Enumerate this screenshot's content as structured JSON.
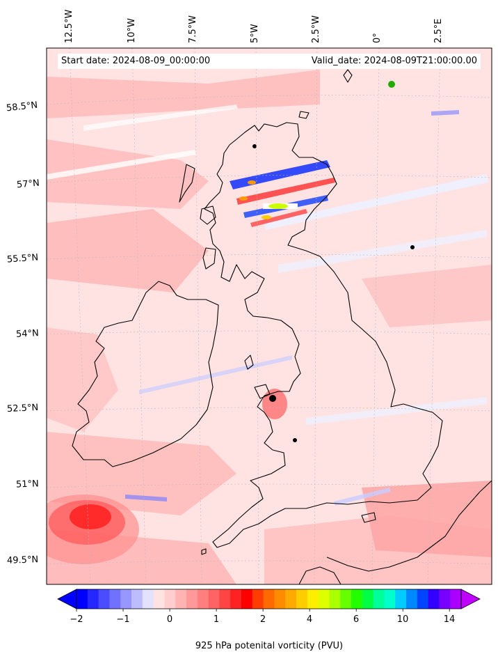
{
  "header": {
    "start_date": "Start date: 2024-08-09_00:00:00",
    "valid_date": "Valid_date: 2024-08-09T21:00:00.00"
  },
  "map": {
    "lon_labels": [
      "12.5°W",
      "10°W",
      "7.5°W",
      "5°W",
      "2.5°W",
      "0°",
      "2.5°E"
    ],
    "lat_labels": [
      "58.5°N",
      "57°N",
      "55.5°N",
      "54°N",
      "52.5°N",
      "51°N",
      "49.5°N"
    ],
    "background_color": "#ffe3e3"
  },
  "colorbar": {
    "label": "925 hPa potenital vorticity (PVU)",
    "tick_labels": [
      "−2",
      "−1",
      "0",
      "1",
      "2",
      "4",
      "6",
      "10",
      "14"
    ],
    "colors": [
      "#0000ff",
      "#2626ff",
      "#4b4bff",
      "#7171ff",
      "#9797ff",
      "#bcbcff",
      "#e2e2ff",
      "#ffe2e2",
      "#ffcdcd",
      "#ffb3b3",
      "#ff9999",
      "#ff7f7f",
      "#ff6464",
      "#ff4444",
      "#ff2222",
      "#ff0000",
      "#ff3d00",
      "#ff6a00",
      "#ff8c00",
      "#ffaa00",
      "#ffcc00",
      "#ffee00",
      "#ddff00",
      "#aaff00",
      "#66ff00",
      "#22ff00",
      "#00ff44",
      "#00ff99",
      "#00ffcc",
      "#00ccff",
      "#0088ff",
      "#0044ff",
      "#3300ff",
      "#7700ff",
      "#aa00ff"
    ],
    "under_color": "#0000ff",
    "over_color": "#c000ff"
  }
}
